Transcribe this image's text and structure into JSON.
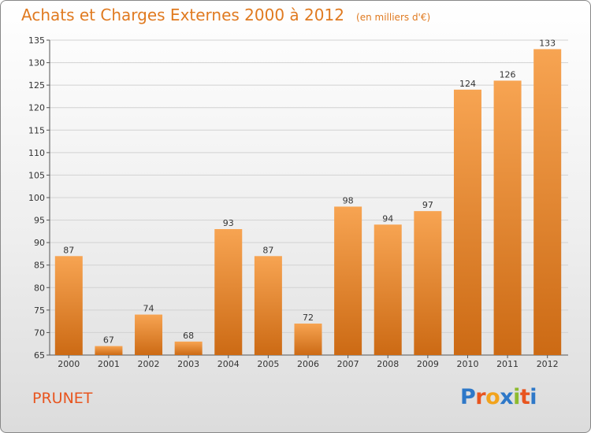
{
  "header": {
    "title": "Achats et Charges Externes 2000 à 2012",
    "subtitle": "(en milliers d'€)"
  },
  "footer": {
    "place": "PRUNET",
    "logo_text": "Proxiti",
    "logo_colors": [
      "#2e78c8",
      "#e8551f",
      "#f2a31c",
      "#2e78c8",
      "#8dbb2e",
      "#e8551f",
      "#2e78c8"
    ]
  },
  "chart_data": {
    "type": "bar",
    "title": "Achats et Charges Externes 2000 à 2012",
    "subtitle": "(en milliers d'€)",
    "categories": [
      "2000",
      "2001",
      "2002",
      "2003",
      "2004",
      "2005",
      "2006",
      "2007",
      "2008",
      "2009",
      "2010",
      "2011",
      "2012"
    ],
    "values": [
      87,
      67,
      74,
      68,
      93,
      87,
      72,
      98,
      94,
      97,
      124,
      126,
      133
    ],
    "ylim": [
      65,
      135
    ],
    "yticks": [
      65,
      70,
      75,
      80,
      85,
      90,
      95,
      100,
      105,
      110,
      115,
      120,
      125,
      130,
      135
    ],
    "grid": true,
    "bar_color_top": "#f7a452",
    "bar_color_bottom": "#cc6a14"
  }
}
